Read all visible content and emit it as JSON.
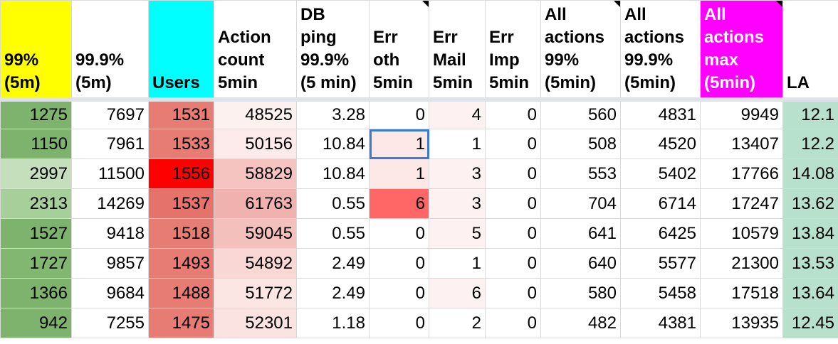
{
  "columns": [
    {
      "label": "99% (5m)",
      "bg": "#ffff00",
      "note": false
    },
    {
      "label": "99.9% (5m)",
      "bg": "#ffffff",
      "note": false
    },
    {
      "label": "Users",
      "bg": "#00ffff",
      "note": false
    },
    {
      "label": "Action count 5min",
      "bg": "#ffffff",
      "note": false
    },
    {
      "label": "DB ping 99.9% (5 min)",
      "bg": "#ffffff",
      "note": false
    },
    {
      "label": "Err oth 5min",
      "bg": "#ffffff",
      "note": true
    },
    {
      "label": "Err Mail 5min",
      "bg": "#ffffff",
      "note": false
    },
    {
      "label": "Err Imp 5min",
      "bg": "#ffffff",
      "note": false
    },
    {
      "label": "All actions 99% (5min)",
      "bg": "#ffffff",
      "note": true
    },
    {
      "label": "All actions 99.9% (5min)",
      "bg": "#ffffff",
      "note": false
    },
    {
      "label": "All actions max (5min)",
      "bg": "#ff00ff",
      "note": true
    },
    {
      "label": "LA",
      "bg": "#ffffff",
      "note": false
    }
  ],
  "rows": [
    [
      "1275",
      "7697",
      "1531",
      "48525",
      "3.28",
      "0",
      "4",
      "0",
      "560",
      "4831",
      "9949",
      "12.1"
    ],
    [
      "1150",
      "7961",
      "1533",
      "50156",
      "10.84",
      "1",
      "1",
      "0",
      "508",
      "4520",
      "13407",
      "12.2"
    ],
    [
      "2997",
      "11500",
      "1556",
      "58829",
      "10.84",
      "1",
      "3",
      "0",
      "553",
      "5402",
      "17766",
      "14.08"
    ],
    [
      "2313",
      "14269",
      "1537",
      "61763",
      "0.55",
      "6",
      "3",
      "0",
      "704",
      "6714",
      "17247",
      "13.62"
    ],
    [
      "1527",
      "9418",
      "1518",
      "59045",
      "0.55",
      "0",
      "5",
      "0",
      "641",
      "6425",
      "10579",
      "13.84"
    ],
    [
      "1727",
      "9857",
      "1493",
      "54892",
      "2.49",
      "0",
      "1",
      "0",
      "640",
      "5577",
      "21300",
      "13.53"
    ],
    [
      "1366",
      "9684",
      "1488",
      "51772",
      "2.49",
      "0",
      "6",
      "0",
      "580",
      "5458",
      "17518",
      "13.64"
    ],
    [
      "942",
      "7255",
      "1475",
      "52301",
      "1.18",
      "0",
      "2",
      "0",
      "482",
      "4381",
      "13935",
      "12.45"
    ]
  ],
  "cell_colors": [
    [
      "#7eb36d",
      "#ffffff",
      "#e67c73",
      "#fdf1f0",
      "#ffffff",
      "#ffffff",
      "#fdf2f1",
      "#ffffff",
      "#ffffff",
      "#ffffff",
      "#ffffff",
      "#b7e1cd"
    ],
    [
      "#7eb36d",
      "#ffffff",
      "#e67c73",
      "#fcebea",
      "#ffffff",
      "#fce8e6",
      "#ffffff",
      "#ffffff",
      "#ffffff",
      "#ffffff",
      "#ffffff",
      "#b7e1cd"
    ],
    [
      "#c5dfbc",
      "#ffffff",
      "#ff0000",
      "#f5c4c1",
      "#ffffff",
      "#fce8e6",
      "#fdf2f1",
      "#ffffff",
      "#ffffff",
      "#ffffff",
      "#ffffff",
      "#b7e1cd"
    ],
    [
      "#a7cf9a",
      "#ffffff",
      "#e5736b",
      "#f0b2ae",
      "#ffffff",
      "#ff6666",
      "#fdf2f1",
      "#ffffff",
      "#ffffff",
      "#ffffff",
      "#ffffff",
      "#b7e1cd"
    ],
    [
      "#7eb36d",
      "#ffffff",
      "#e67c73",
      "#f4c0bc",
      "#ffffff",
      "#ffffff",
      "#fdf2f1",
      "#ffffff",
      "#ffffff",
      "#ffffff",
      "#ffffff",
      "#b7e1cd"
    ],
    [
      "#82b772",
      "#ffffff",
      "#e67c73",
      "#f8d7d4",
      "#ffffff",
      "#ffffff",
      "#ffffff",
      "#ffffff",
      "#ffffff",
      "#ffffff",
      "#ffffff",
      "#b7e1cd"
    ],
    [
      "#7eb36d",
      "#ffffff",
      "#e67c73",
      "#fbe6e4",
      "#ffffff",
      "#ffffff",
      "#fdf2f1",
      "#ffffff",
      "#ffffff",
      "#ffffff",
      "#ffffff",
      "#b7e1cd"
    ],
    [
      "#7eb36d",
      "#ffffff",
      "#e67c73",
      "#fbe3e1",
      "#ffffff",
      "#ffffff",
      "#ffffff",
      "#ffffff",
      "#ffffff",
      "#ffffff",
      "#ffffff",
      "#b7e1cd"
    ]
  ],
  "selected_cell": {
    "row": 1,
    "col": 5
  }
}
